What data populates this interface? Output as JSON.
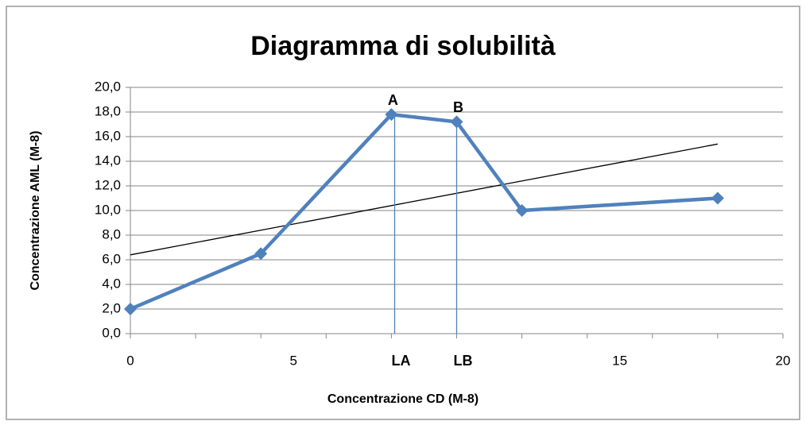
{
  "chart_data": {
    "type": "line",
    "title": "Diagramma di solubilità",
    "xlabel": "Concentrazione CD (M-8)",
    "ylabel": "Concentrazione AML (M-8)",
    "x": [
      0,
      4,
      8,
      10,
      12,
      18
    ],
    "series": [
      {
        "name": null,
        "color": "#4f81bd",
        "values": [
          2,
          6.5,
          17.8,
          17.2,
          10,
          11
        ],
        "point_labels": [
          null,
          null,
          "A",
          "B",
          null,
          null
        ],
        "label_color": "#ff0000"
      }
    ],
    "trendline": {
      "color": "#000000",
      "x": [
        0,
        18
      ],
      "values": [
        6.4,
        15.4
      ]
    },
    "drop_lines": [
      {
        "label": "LA",
        "x": 8.1,
        "y": 17.8
      },
      {
        "label": "LB",
        "x": 10,
        "y": 17.2
      }
    ],
    "drop_color": "#4f81bd",
    "xlim": [
      0,
      20
    ],
    "ylim": [
      0,
      20
    ],
    "xticks": [
      0,
      5,
      15,
      20
    ],
    "xminorticks": [
      0,
      2,
      4,
      6,
      8,
      10,
      12,
      14,
      16,
      18,
      20
    ],
    "yticks": [
      {
        "value": 0,
        "label": "0,0"
      },
      {
        "value": 2,
        "label": "2,0"
      },
      {
        "value": 4,
        "label": "4,0"
      },
      {
        "value": 6,
        "label": "6,0"
      },
      {
        "value": 8,
        "label": "8,0"
      },
      {
        "value": 10,
        "label": "10,0"
      },
      {
        "value": 12,
        "label": "12,0"
      },
      {
        "value": 14,
        "label": "14,0"
      },
      {
        "value": 16,
        "label": "16,0"
      },
      {
        "value": 18,
        "label": "18,0"
      },
      {
        "value": 20,
        "label": "20,0"
      }
    ],
    "grid": true
  }
}
